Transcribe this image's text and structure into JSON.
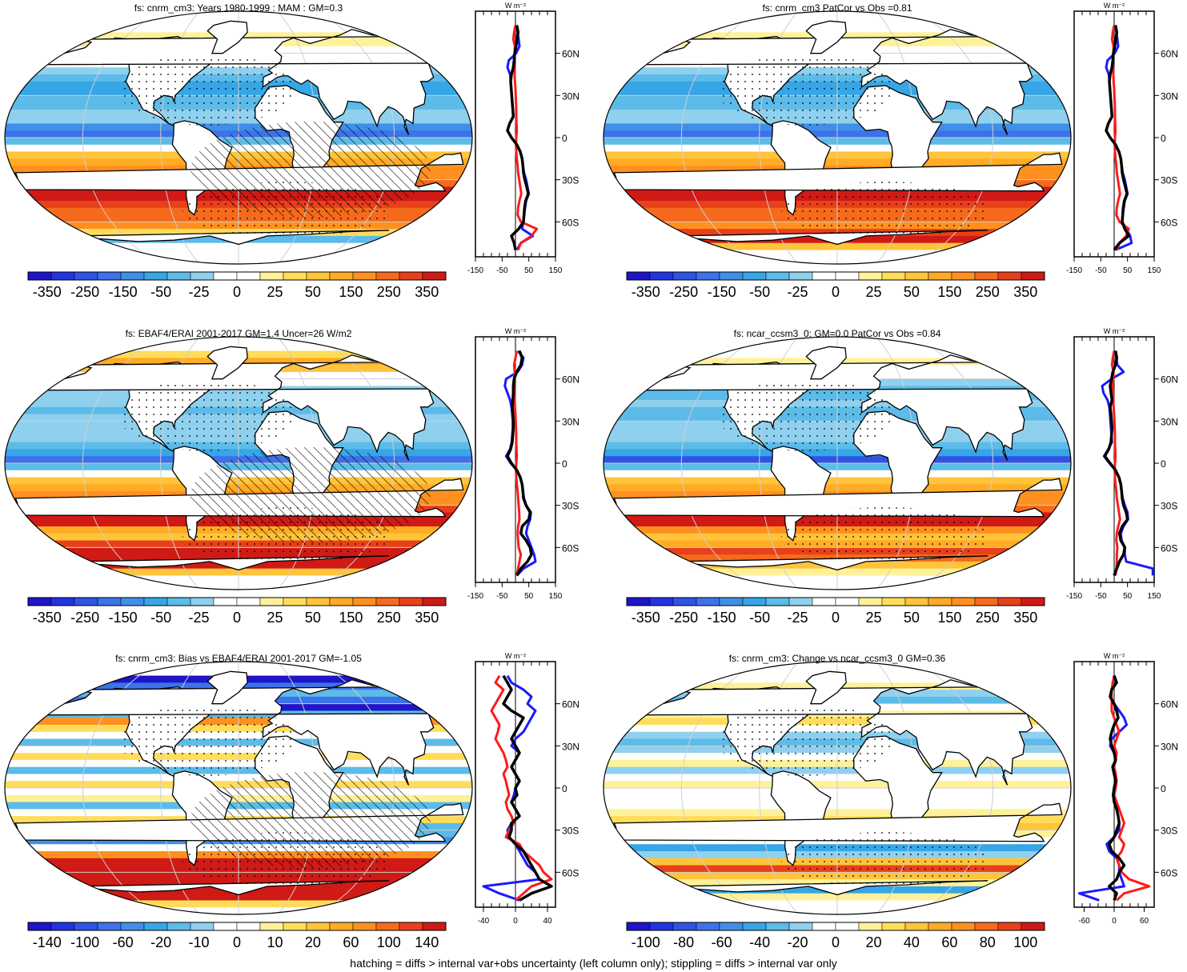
{
  "footer": "hatching = diffs > internal var+obs uncertainty (left column only); stippling = diffs > internal var only",
  "chart_data": [
    {
      "type": "heatmap",
      "title": "fs: cnrm_cm3: Years 1980-1999 : MAM : GM=0.3",
      "colorbar_labels": [
        "-350",
        "-250",
        "-150",
        "-50",
        "-25",
        "0",
        "25",
        "50",
        "150",
        "250",
        "350"
      ],
      "zonal_xticks": [
        "-150",
        "-50",
        "50",
        "150"
      ],
      "zonal_xlim": [
        -150,
        150
      ],
      "zonal_unit": "W m⁻²",
      "lat_ticks": [
        "60N",
        "30N",
        "0",
        "30S",
        "60S"
      ],
      "hatching": true,
      "zonal_profiles": {
        "lat": [
          80,
          75,
          70,
          65,
          60,
          55,
          50,
          45,
          40,
          35,
          30,
          25,
          20,
          15,
          10,
          5,
          0,
          -5,
          -10,
          -15,
          -20,
          -25,
          -30,
          -35,
          -40,
          -45,
          -50,
          -55,
          -60,
          -65,
          -70,
          -75,
          -80
        ],
        "black": [
          5,
          10,
          6,
          2,
          -3,
          -5,
          -8,
          -15,
          -18,
          -16,
          -14,
          -12,
          -10,
          -8,
          -22,
          -30,
          -15,
          5,
          18,
          25,
          28,
          30,
          35,
          42,
          48,
          38,
          34,
          32,
          30,
          12,
          -15,
          -5,
          0
        ],
        "blue": [
          3,
          8,
          12,
          15,
          2,
          -25,
          -30,
          -20,
          -18,
          -16,
          -14,
          -12,
          -10,
          -8,
          -22,
          -30,
          -15,
          5,
          18,
          25,
          28,
          32,
          40,
          45,
          50,
          40,
          36,
          32,
          30,
          25,
          65,
          20,
          5
        ],
        "red": [
          0,
          -5,
          -8,
          -2,
          -3,
          -5,
          -4,
          -3,
          -2,
          0,
          1,
          2,
          3,
          3,
          4,
          5,
          3,
          2,
          3,
          5,
          8,
          10,
          14,
          18,
          22,
          15,
          10,
          8,
          20,
          80,
          60,
          20,
          10
        ]
      },
      "colors": {
        "black": "#000000",
        "blue": "#1a1aff",
        "red": "#ff1a1a"
      }
    },
    {
      "type": "heatmap",
      "title": "fs: cnrm_cm3 PatCor vs Obs =0.81",
      "colorbar_labels": [
        "-350",
        "-250",
        "-150",
        "-50",
        "-25",
        "0",
        "25",
        "50",
        "150",
        "250",
        "350"
      ],
      "zonal_xticks": [
        "-150",
        "-50",
        "50",
        "150"
      ],
      "zonal_xlim": [
        -150,
        150
      ],
      "zonal_unit": "W m⁻²",
      "lat_ticks": [
        "60N",
        "30N",
        "0",
        "30S",
        "60S"
      ],
      "hatching": false,
      "zonal_profiles": {
        "lat": [
          80,
          75,
          70,
          65,
          60,
          55,
          50,
          45,
          40,
          35,
          30,
          25,
          20,
          15,
          10,
          5,
          0,
          -5,
          -10,
          -15,
          -20,
          -25,
          -30,
          -35,
          -40,
          -45,
          -50,
          -55,
          -60,
          -65,
          -70,
          -75,
          -80
        ],
        "black": [
          5,
          10,
          6,
          2,
          -3,
          -5,
          -8,
          -15,
          -18,
          -16,
          -14,
          -12,
          -10,
          -8,
          -22,
          -30,
          -15,
          5,
          18,
          25,
          28,
          30,
          35,
          42,
          48,
          38,
          34,
          32,
          30,
          40,
          55,
          20,
          0
        ],
        "blue": [
          3,
          8,
          12,
          15,
          2,
          -25,
          -30,
          -20,
          -18,
          -16,
          -14,
          -12,
          -10,
          -8,
          -22,
          -30,
          -15,
          5,
          18,
          25,
          28,
          32,
          40,
          45,
          50,
          40,
          36,
          32,
          30,
          45,
          60,
          65,
          5
        ],
        "red": [
          0,
          -5,
          -8,
          -2,
          -3,
          -5,
          -4,
          -3,
          -2,
          0,
          1,
          2,
          3,
          3,
          4,
          5,
          3,
          2,
          3,
          5,
          8,
          10,
          14,
          18,
          22,
          15,
          10,
          8,
          20,
          55,
          45,
          20,
          10
        ]
      },
      "colors": {
        "black": "#000000",
        "blue": "#1a1aff",
        "red": "#ff1a1a"
      }
    },
    {
      "type": "heatmap",
      "title": "fs: EBAF4/ERAI 2001-2017 GM=1.4 Uncer=26 W/m2",
      "colorbar_labels": [
        "-350",
        "-250",
        "-150",
        "-50",
        "-25",
        "0",
        "25",
        "50",
        "150",
        "250",
        "350"
      ],
      "zonal_xticks": [
        "-150",
        "-50",
        "50",
        "150"
      ],
      "zonal_xlim": [
        -150,
        150
      ],
      "zonal_unit": "W m⁻²",
      "lat_ticks": [
        "60N",
        "30N",
        "0",
        "30S",
        "60S"
      ],
      "hatching": true,
      "zonal_profiles": {
        "lat": [
          80,
          75,
          70,
          65,
          60,
          55,
          50,
          45,
          40,
          35,
          30,
          25,
          20,
          15,
          10,
          5,
          0,
          -5,
          -10,
          -15,
          -20,
          -25,
          -30,
          -35,
          -40,
          -45,
          -50,
          -55,
          -60,
          -65,
          -70,
          -75,
          -80
        ],
        "black": [
          15,
          25,
          20,
          5,
          -5,
          -8,
          -8,
          -10,
          -12,
          -10,
          -8,
          -8,
          -10,
          -12,
          -18,
          -30,
          -15,
          5,
          18,
          25,
          28,
          30,
          40,
          55,
          50,
          25,
          20,
          40,
          55,
          60,
          45,
          20,
          5
        ],
        "blue": [
          10,
          30,
          25,
          8,
          -35,
          -40,
          -30,
          -20,
          -15,
          -12,
          -10,
          -10,
          -12,
          -14,
          -20,
          -35,
          -18,
          5,
          18,
          25,
          28,
          32,
          40,
          58,
          55,
          45,
          40,
          50,
          60,
          70,
          75,
          30,
          5
        ],
        "red": [
          5,
          0,
          -5,
          -3,
          -5,
          -5,
          -4,
          -3,
          -2,
          0,
          1,
          2,
          3,
          3,
          4,
          5,
          3,
          2,
          3,
          5,
          8,
          10,
          12,
          14,
          15,
          10,
          8,
          10,
          12,
          20,
          15,
          10,
          5
        ]
      },
      "colors": {
        "black": "#000000",
        "blue": "#1a1aff",
        "red": "#ff1a1a"
      }
    },
    {
      "type": "heatmap",
      "title": "fs: ncar_ccsm3_0: GM=0.0 PatCor vs Obs =0.84",
      "colorbar_labels": [
        "-350",
        "-250",
        "-150",
        "-50",
        "-25",
        "0",
        "25",
        "50",
        "150",
        "250",
        "350"
      ],
      "zonal_xticks": [
        "-150",
        "-50",
        "50",
        "150"
      ],
      "zonal_xlim": [
        -150,
        150
      ],
      "zonal_unit": "W m⁻²",
      "lat_ticks": [
        "60N",
        "30N",
        "0",
        "30S",
        "60S"
      ],
      "hatching": false,
      "zonal_profiles": {
        "lat": [
          80,
          75,
          70,
          65,
          60,
          55,
          50,
          45,
          40,
          35,
          30,
          25,
          20,
          15,
          10,
          5,
          0,
          -5,
          -10,
          -15,
          -20,
          -25,
          -30,
          -35,
          -40,
          -45,
          -50,
          -55,
          -60,
          -65,
          -70,
          -75,
          -80
        ],
        "black": [
          5,
          10,
          5,
          -5,
          -10,
          -15,
          -12,
          -8,
          -15,
          -12,
          -10,
          -8,
          -10,
          -12,
          -20,
          -35,
          -15,
          5,
          18,
          25,
          28,
          30,
          35,
          45,
          50,
          30,
          20,
          25,
          40,
          35,
          20,
          10,
          0
        ],
        "blue": [
          3,
          8,
          12,
          35,
          -10,
          -45,
          -40,
          -25,
          -18,
          -16,
          -14,
          -12,
          -10,
          -8,
          -22,
          -38,
          -18,
          5,
          18,
          25,
          28,
          32,
          40,
          50,
          52,
          35,
          25,
          28,
          40,
          40,
          45,
          145,
          145
        ],
        "red": [
          0,
          -5,
          -8,
          -2,
          -3,
          -5,
          -4,
          -3,
          -2,
          0,
          1,
          2,
          3,
          3,
          4,
          5,
          3,
          2,
          3,
          5,
          8,
          10,
          14,
          18,
          22,
          15,
          10,
          8,
          12,
          10,
          10,
          8,
          5
        ]
      },
      "colors": {
        "black": "#000000",
        "blue": "#1a1aff",
        "red": "#ff1a1a"
      }
    },
    {
      "type": "heatmap",
      "title": "fs: cnrm_cm3: Bias vs EBAF4/ERAI 2001-2017 GM=-1.05",
      "colorbar_labels": [
        "-140",
        "-100",
        "-60",
        "-20",
        "-10",
        "0",
        "10",
        "20",
        "60",
        "100",
        "140"
      ],
      "zonal_xticks": [
        "-40",
        "0",
        "40"
      ],
      "zonal_xlim": [
        -50,
        50
      ],
      "zonal_unit": "W m⁻²",
      "lat_ticks": [
        "60N",
        "30N",
        "0",
        "30S",
        "60S"
      ],
      "hatching": true,
      "zonal_profiles": {
        "lat": [
          80,
          75,
          70,
          65,
          60,
          55,
          50,
          45,
          40,
          35,
          30,
          25,
          20,
          15,
          10,
          5,
          0,
          -5,
          -10,
          -15,
          -20,
          -25,
          -30,
          -35,
          -40,
          -45,
          -50,
          -55,
          -60,
          -65,
          -70,
          -75,
          -80
        ],
        "black": [
          -15,
          -10,
          -5,
          -10,
          -15,
          -5,
          10,
          5,
          0,
          -5,
          0,
          5,
          0,
          -5,
          0,
          5,
          0,
          2,
          -5,
          0,
          5,
          -5,
          -5,
          -8,
          0,
          10,
          15,
          20,
          25,
          30,
          45,
          20,
          5
        ],
        "blue": [
          -10,
          -5,
          10,
          20,
          15,
          25,
          20,
          15,
          10,
          0,
          -5,
          5,
          0,
          -5,
          0,
          5,
          0,
          -2,
          -5,
          0,
          5,
          -5,
          -10,
          -8,
          0,
          5,
          10,
          15,
          25,
          30,
          -40,
          -20,
          5
        ],
        "red": [
          -20,
          -25,
          -15,
          -20,
          -25,
          -30,
          -25,
          -20,
          -22,
          -25,
          -20,
          -15,
          -12,
          -10,
          -15,
          -12,
          -10,
          -8,
          -12,
          -10,
          -5,
          -2,
          -8,
          -12,
          5,
          10,
          20,
          30,
          35,
          45,
          20,
          10,
          0
        ]
      },
      "colors": {
        "black": "#000000",
        "blue": "#1a1aff",
        "red": "#ff1a1a"
      }
    },
    {
      "type": "heatmap",
      "title": "fs: cnrm_cm3: Change vs ncar_ccsm3_0 GM=0.36",
      "colorbar_labels": [
        "-100",
        "-80",
        "-60",
        "-40",
        "-20",
        "0",
        "20",
        "40",
        "60",
        "80",
        "100"
      ],
      "zonal_xticks": [
        "-60",
        "0",
        "60"
      ],
      "zonal_xlim": [
        -80,
        80
      ],
      "zonal_unit": "W m⁻²",
      "lat_ticks": [
        "60N",
        "30N",
        "0",
        "30S",
        "60S"
      ],
      "hatching": false,
      "zonal_profiles": {
        "lat": [
          80,
          75,
          70,
          65,
          60,
          55,
          50,
          45,
          40,
          35,
          30,
          25,
          20,
          15,
          10,
          5,
          0,
          -5,
          -10,
          -15,
          -20,
          -25,
          -30,
          -35,
          -40,
          -45,
          -50,
          -55,
          -60,
          -65,
          -70,
          -75,
          -80
        ],
        "black": [
          0,
          5,
          -5,
          -8,
          0,
          5,
          8,
          0,
          -5,
          -8,
          -5,
          0,
          3,
          -3,
          0,
          3,
          0,
          -2,
          0,
          5,
          8,
          10,
          5,
          0,
          -10,
          -5,
          10,
          20,
          10,
          5,
          -10,
          5,
          0
        ],
        "blue": [
          0,
          5,
          -5,
          -8,
          0,
          10,
          20,
          25,
          10,
          -5,
          -8,
          0,
          3,
          -3,
          0,
          3,
          0,
          -2,
          0,
          5,
          8,
          10,
          10,
          0,
          -15,
          -10,
          5,
          10,
          10,
          15,
          20,
          -70,
          -30
        ],
        "red": [
          0,
          -3,
          -5,
          -5,
          -5,
          -5,
          0,
          5,
          10,
          5,
          0,
          5,
          3,
          0,
          3,
          5,
          3,
          0,
          5,
          10,
          15,
          20,
          15,
          10,
          20,
          15,
          5,
          10,
          15,
          30,
          70,
          20,
          5
        ]
      },
      "colors": {
        "black": "#000000",
        "blue": "#1a1aff",
        "red": "#ff1a1a"
      }
    }
  ]
}
